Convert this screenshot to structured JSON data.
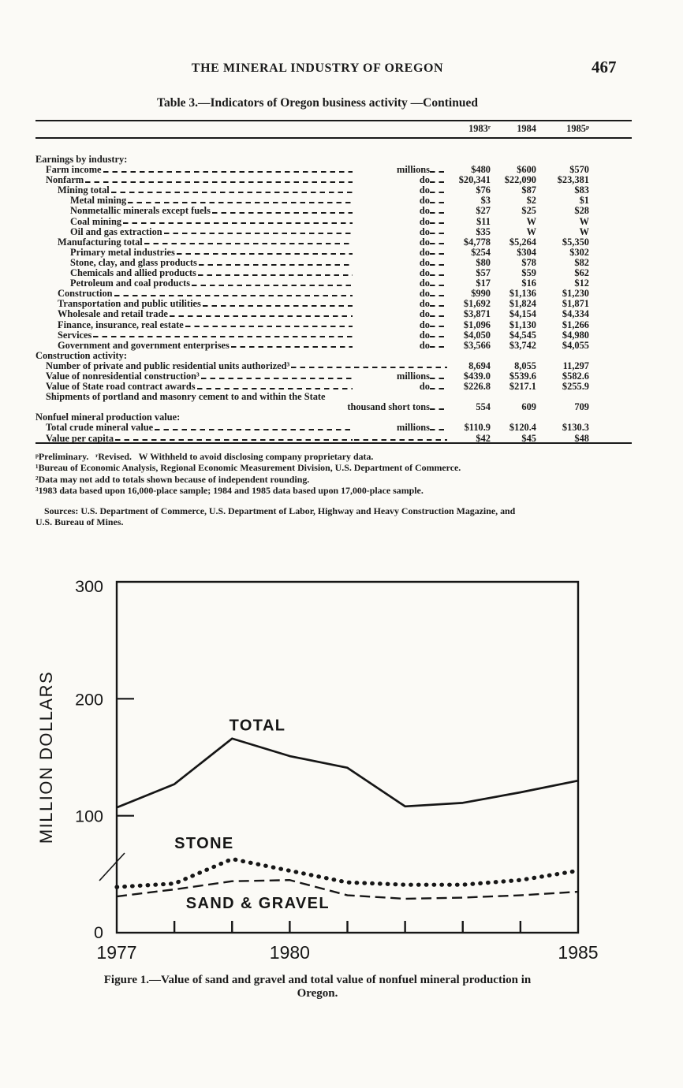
{
  "page": {
    "running_head": "THE MINERAL INDUSTRY OF OREGON",
    "page_number": "467"
  },
  "table": {
    "title": "Table 3.—Indicators of Oregon business activity —Continued",
    "column_headers": [
      "1983ʳ",
      "1984",
      "1985ᵖ"
    ],
    "rows": [
      {
        "type": "section",
        "indent": 0,
        "label": "Earnings by industry:"
      },
      {
        "type": "data",
        "indent": 1,
        "label": "Farm income",
        "unit": "millions",
        "values": [
          "$480",
          "$600",
          "$570"
        ]
      },
      {
        "type": "data",
        "indent": 1,
        "label": "Nonfarm",
        "unit": "do",
        "values": [
          "$20,341",
          "$22,090",
          "$23,381"
        ]
      },
      {
        "type": "data",
        "indent": 2,
        "label": "Mining total",
        "unit": "do",
        "values": [
          "$76",
          "$87",
          "$83"
        ]
      },
      {
        "type": "data",
        "indent": 3,
        "label": "Metal mining",
        "unit": "do",
        "values": [
          "$3",
          "$2",
          "$1"
        ]
      },
      {
        "type": "data",
        "indent": 3,
        "label": "Nonmetallic minerals except fuels",
        "unit": "do",
        "values": [
          "$27",
          "$25",
          "$28"
        ]
      },
      {
        "type": "data",
        "indent": 3,
        "label": "Coal mining",
        "unit": "do",
        "values": [
          "$11",
          "W",
          "W"
        ]
      },
      {
        "type": "data",
        "indent": 3,
        "label": "Oil and gas extraction",
        "unit": "do",
        "values": [
          "$35",
          "W",
          "W"
        ]
      },
      {
        "type": "data",
        "indent": 2,
        "label": "Manufacturing total",
        "unit": "do",
        "values": [
          "$4,778",
          "$5,264",
          "$5,350"
        ]
      },
      {
        "type": "data",
        "indent": 3,
        "label": "Primary metal industries",
        "unit": "do",
        "values": [
          "$254",
          "$304",
          "$302"
        ]
      },
      {
        "type": "data",
        "indent": 3,
        "label": "Stone, clay, and glass products",
        "unit": "do",
        "values": [
          "$80",
          "$78",
          "$82"
        ]
      },
      {
        "type": "data",
        "indent": 3,
        "label": "Chemicals and allied products",
        "unit": "do",
        "values": [
          "$57",
          "$59",
          "$62"
        ]
      },
      {
        "type": "data",
        "indent": 3,
        "label": "Petroleum and coal products",
        "unit": "do",
        "values": [
          "$17",
          "$16",
          "$12"
        ]
      },
      {
        "type": "data",
        "indent": 2,
        "label": "Construction",
        "unit": "do",
        "values": [
          "$990",
          "$1,136",
          "$1,230"
        ]
      },
      {
        "type": "data",
        "indent": 2,
        "label": "Transportation and public utilities",
        "unit": "do",
        "values": [
          "$1,692",
          "$1,824",
          "$1,871"
        ]
      },
      {
        "type": "data",
        "indent": 2,
        "label": "Wholesale and retail trade",
        "unit": "do",
        "values": [
          "$3,871",
          "$4,154",
          "$4,334"
        ]
      },
      {
        "type": "data",
        "indent": 2,
        "label": "Finance, insurance, real estate",
        "unit": "do",
        "values": [
          "$1,096",
          "$1,130",
          "$1,266"
        ]
      },
      {
        "type": "data",
        "indent": 2,
        "label": "Services",
        "unit": "do",
        "values": [
          "$4,050",
          "$4,545",
          "$4,980"
        ]
      },
      {
        "type": "data",
        "indent": 2,
        "label": "Government and government enterprises",
        "unit": "do",
        "values": [
          "$3,566",
          "$3,742",
          "$4,055"
        ]
      },
      {
        "type": "section",
        "indent": 0,
        "label": "Construction activity:"
      },
      {
        "type": "data",
        "indent": 1,
        "label": "Number of private and public residential units authorized³",
        "unit": "",
        "values": [
          "8,694",
          "8,055",
          "11,297"
        ]
      },
      {
        "type": "data",
        "indent": 1,
        "label": "Value of nonresidential construction³",
        "unit": "millions",
        "values": [
          "$439.0",
          "$539.6",
          "$582.6"
        ]
      },
      {
        "type": "data",
        "indent": 1,
        "label": "Value of State road contract awards",
        "unit": "do",
        "values": [
          "$226.8",
          "$217.1",
          "$255.9"
        ]
      },
      {
        "type": "wraphead",
        "indent": 1,
        "label": "Shipments of portland and masonry cement to and within the State"
      },
      {
        "type": "wrapunit",
        "indent": 0,
        "unit": "thousand short tons",
        "values": [
          "554",
          "609",
          "709"
        ]
      },
      {
        "type": "section",
        "indent": 0,
        "label": "Nonfuel mineral production value:"
      },
      {
        "type": "data",
        "indent": 1,
        "label": "Total crude mineral value",
        "unit": "millions",
        "values": [
          "$110.9",
          "$120.4",
          "$130.3"
        ]
      },
      {
        "type": "data",
        "indent": 1,
        "label": "Value per capita",
        "unit": "",
        "values": [
          "$42",
          "$45",
          "$48"
        ]
      }
    ]
  },
  "footnotes": {
    "lines": [
      "ᵖPreliminary.   ʳRevised.   W Withheld to avoid disclosing company proprietary data.",
      "¹Bureau of Economic Analysis, Regional Economic Measurement Division, U.S. Department of Commerce.",
      "²Data may not add to totals shown because of independent rounding.",
      "³1983 data based upon 16,000-place sample; 1984 and 1985 data based upon 17,000-place sample."
    ],
    "sources_lines": [
      "Sources: U.S. Department of Commerce, U.S. Department of Labor, Highway and Heavy Construction Magazine, and",
      "U.S. Bureau of Mines."
    ]
  },
  "figure": {
    "caption_line1": "Figure 1.—Value of sand and gravel and total value of nonfuel mineral production in",
    "caption_line2": "Oregon."
  },
  "chart_data": {
    "type": "line",
    "title": "",
    "xlabel": "",
    "ylabel": "MILLION DOLLARS",
    "ylim": [
      0,
      300
    ],
    "yticks": [
      0,
      100,
      200,
      300
    ],
    "x": [
      1977,
      1978,
      1979,
      1980,
      1981,
      1982,
      1983,
      1984,
      1985
    ],
    "xtick_label_years": [
      1977,
      1980,
      1985
    ],
    "grid": false,
    "legend": "inline-labels",
    "axis_break_slash_on_y_axis": true,
    "series": [
      {
        "name": "TOTAL",
        "style": "solid",
        "values": [
          107,
          127,
          166,
          151,
          141,
          108,
          111,
          120,
          130
        ]
      },
      {
        "name": "STONE",
        "style": "dotted",
        "values": [
          39,
          42,
          63,
          53,
          43,
          41,
          41,
          45,
          53
        ]
      },
      {
        "name": "SAND & GRAVEL",
        "style": "dashed",
        "values": [
          31,
          37,
          44,
          45,
          32,
          29,
          30,
          32,
          35
        ]
      }
    ],
    "annotations": [
      {
        "text": "TOTAL",
        "x": 1978.95,
        "y": 173
      },
      {
        "text": "STONE",
        "x": 1978.0,
        "y": 72
      },
      {
        "text": "SAND & GRAVEL",
        "x": 1978.2,
        "y": 21
      }
    ],
    "ink_color": "#161616"
  }
}
